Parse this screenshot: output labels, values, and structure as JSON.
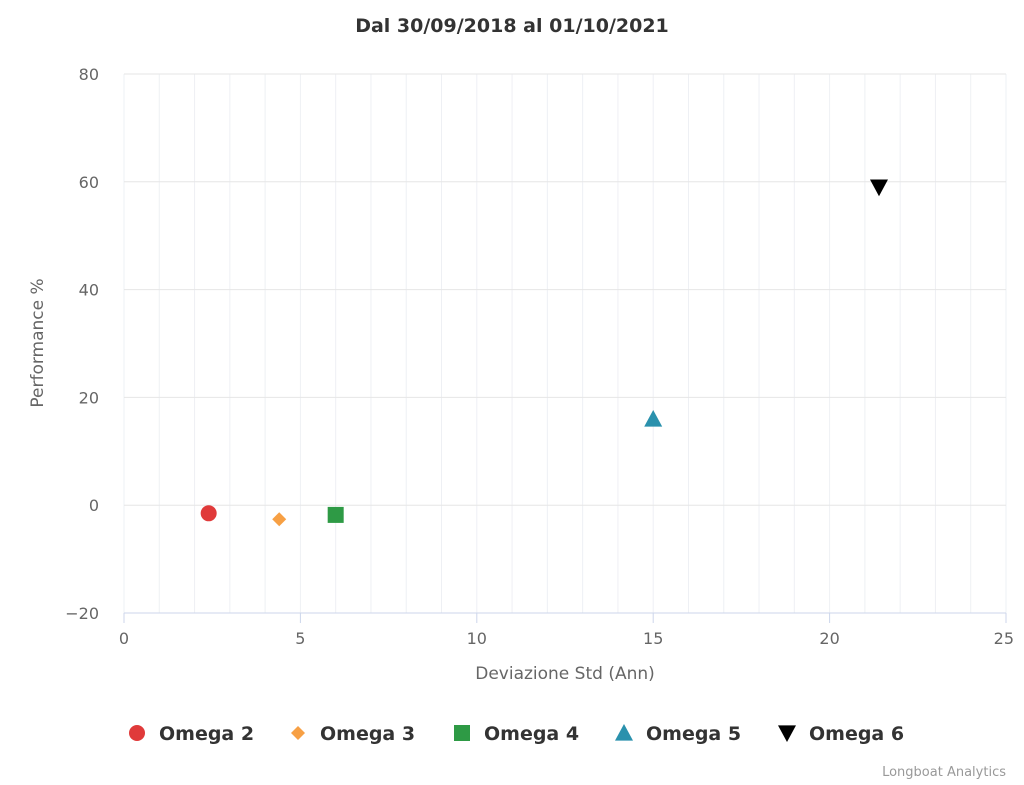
{
  "chart_data": {
    "type": "scatter",
    "title": "Dal 30/09/2018 al 01/10/2021",
    "xlabel": "Deviazione Std (Ann)",
    "ylabel": "Performance %",
    "xlim": [
      0,
      25
    ],
    "ylim": [
      -20,
      80
    ],
    "x_ticks": [
      0,
      5,
      10,
      15,
      20,
      25
    ],
    "y_ticks": [
      -20,
      0,
      20,
      40,
      60,
      80
    ],
    "x_tick_labels": [
      "0",
      "5",
      "10",
      "15",
      "20",
      "25"
    ],
    "y_tick_labels": [
      "−20",
      "0",
      "20",
      "40",
      "60",
      "80"
    ],
    "grid": true,
    "legend_position": "bottom",
    "series": [
      {
        "name": "Omega 2",
        "marker": "circle",
        "color": "#e03a3a",
        "points": [
          {
            "x": 2.4,
            "y": -1.5
          }
        ]
      },
      {
        "name": "Omega 3",
        "marker": "diamond",
        "color": "#f7a044",
        "points": [
          {
            "x": 4.4,
            "y": -2.6
          }
        ]
      },
      {
        "name": "Omega 4",
        "marker": "square",
        "color": "#2e9a45",
        "points": [
          {
            "x": 6.0,
            "y": -1.8
          }
        ]
      },
      {
        "name": "Omega 5",
        "marker": "triangle",
        "color": "#2a91ad",
        "points": [
          {
            "x": 15.0,
            "y": 16.0
          }
        ]
      },
      {
        "name": "Omega 6",
        "marker": "triangle-down",
        "color": "#000000",
        "points": [
          {
            "x": 21.4,
            "y": 59.0
          }
        ]
      }
    ]
  },
  "credits": "Longboat Analytics"
}
